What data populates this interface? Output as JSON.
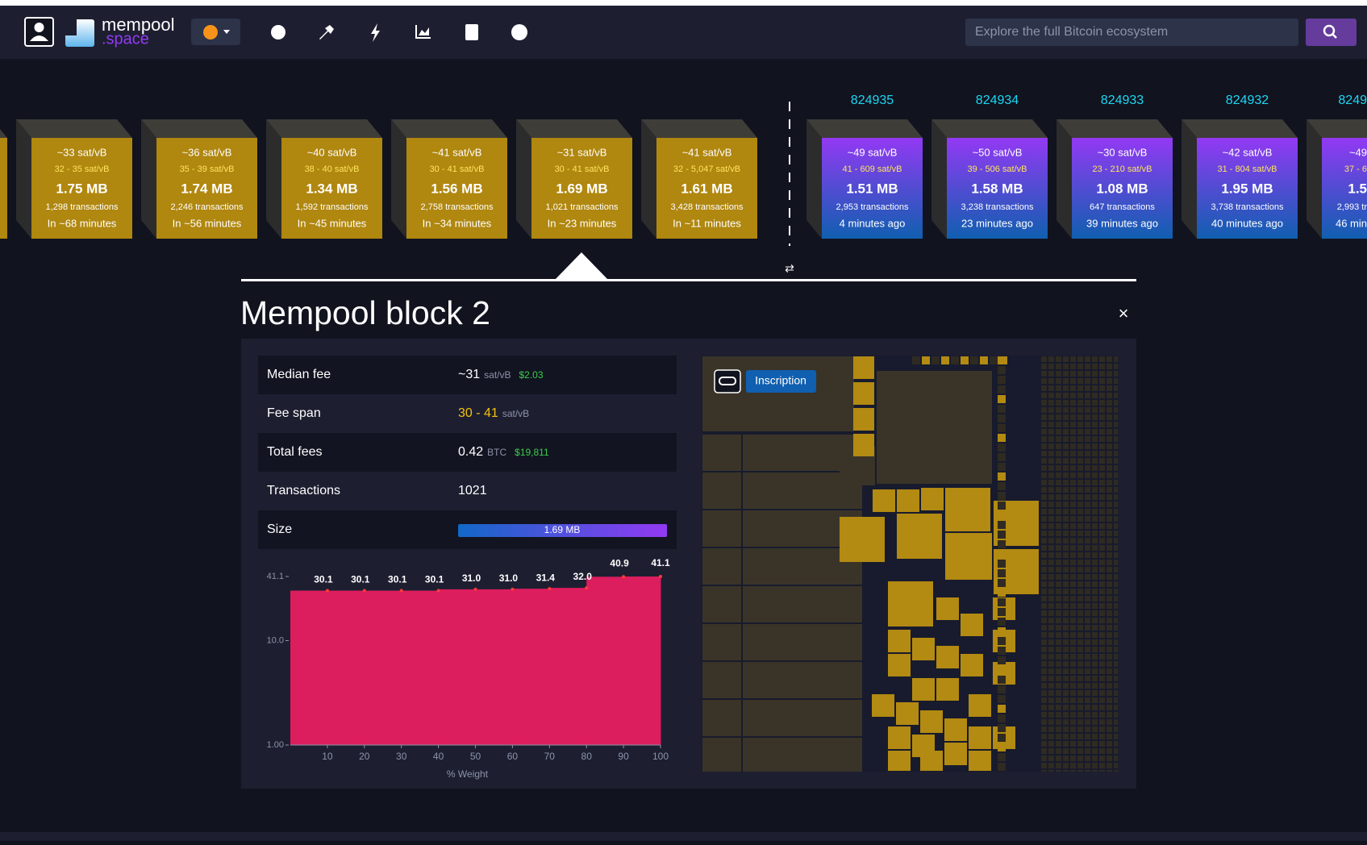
{
  "header": {
    "logo_main": "mempool",
    "logo_sub": ".space",
    "search_placeholder": "Explore the full Bitcoin ecosystem"
  },
  "mempool_blocks": [
    {
      "fee": "~33 sat/vB",
      "fee_range": "32 - 35 sat/vB",
      "size": "1.75 MB",
      "transactions": "1,298 transactions",
      "eta": "In ~68 minutes"
    },
    {
      "fee": "~36 sat/vB",
      "fee_range": "35 - 39 sat/vB",
      "size": "1.74 MB",
      "transactions": "2,246 transactions",
      "eta": "In ~56 minutes"
    },
    {
      "fee": "~40 sat/vB",
      "fee_range": "38 - 40 sat/vB",
      "size": "1.34 MB",
      "transactions": "1,592 transactions",
      "eta": "In ~45 minutes"
    },
    {
      "fee": "~41 sat/vB",
      "fee_range": "30 - 41 sat/vB",
      "size": "1.56 MB",
      "transactions": "2,758 transactions",
      "eta": "In ~34 minutes"
    },
    {
      "fee": "~31 sat/vB",
      "fee_range": "30 - 41 sat/vB",
      "size": "1.69 MB",
      "transactions": "1,021 transactions",
      "eta": "In ~23 minutes"
    },
    {
      "fee": "~41 sat/vB",
      "fee_range": "32 - 5,047 sat/vB",
      "size": "1.61 MB",
      "transactions": "3,428 transactions",
      "eta": "In ~11 minutes"
    }
  ],
  "mined_blocks": [
    {
      "height": "824935",
      "fee": "~49 sat/vB",
      "fee_range": "41 - 609 sat/vB",
      "size": "1.51 MB",
      "transactions": "2,953 transactions",
      "age": "4 minutes ago"
    },
    {
      "height": "824934",
      "fee": "~50 sat/vB",
      "fee_range": "39 - 506 sat/vB",
      "size": "1.58 MB",
      "transactions": "3,238 transactions",
      "age": "23 minutes ago"
    },
    {
      "height": "824933",
      "fee": "~30 sat/vB",
      "fee_range": "23 - 210 sat/vB",
      "size": "1.08 MB",
      "transactions": "647 transactions",
      "age": "39 minutes ago"
    },
    {
      "height": "824932",
      "fee": "~42 sat/vB",
      "fee_range": "31 - 804 sat/vB",
      "size": "1.95 MB",
      "transactions": "3,738 transactions",
      "age": "40 minutes ago"
    },
    {
      "height": "8249",
      "fee": "~49",
      "fee_range": "37 - 6",
      "size": "1.5",
      "transactions": "2,993 tr",
      "age": "46 min"
    }
  ],
  "detail": {
    "title": "Mempool block 2",
    "close": "×",
    "badge": "Inscription",
    "rows": [
      {
        "label": "Median fee",
        "value": "~31",
        "unit": "sat/vB",
        "fiat": "$2.03"
      },
      {
        "label": "Fee span",
        "value": "30 - 41",
        "unit": "sat/vB"
      },
      {
        "label": "Total fees",
        "value": "0.42",
        "unit": "BTC",
        "fiat": "$19,811"
      },
      {
        "label": "Transactions",
        "value": "1021"
      },
      {
        "label": "Size",
        "value": "1.69 MB"
      }
    ]
  },
  "chart_data": {
    "type": "area",
    "x_label": "% Weight",
    "log_scale": "y",
    "color": "#dc1d5e",
    "x": [
      10,
      20,
      30,
      40,
      50,
      60,
      70,
      80,
      90,
      100
    ],
    "values": [
      30.1,
      30.1,
      30.1,
      30.1,
      31.0,
      31.0,
      31.4,
      32.0,
      40.9,
      41.1
    ],
    "value_labels": [
      "30.1",
      "30.1",
      "30.1",
      "30.1",
      "31.0",
      "31.0",
      "31.4",
      "32.0",
      "40.9",
      "41.1"
    ],
    "xlim": [
      0,
      100
    ],
    "xticks": [
      10,
      20,
      30,
      40,
      50,
      60,
      70,
      80,
      90,
      100
    ],
    "ylim": [
      1,
      41.1
    ],
    "yticks": [
      {
        "value": 1,
        "label": "1.00"
      },
      {
        "value": 10,
        "label": "10.0"
      },
      {
        "value": 41.1,
        "label": "41.1"
      }
    ]
  }
}
